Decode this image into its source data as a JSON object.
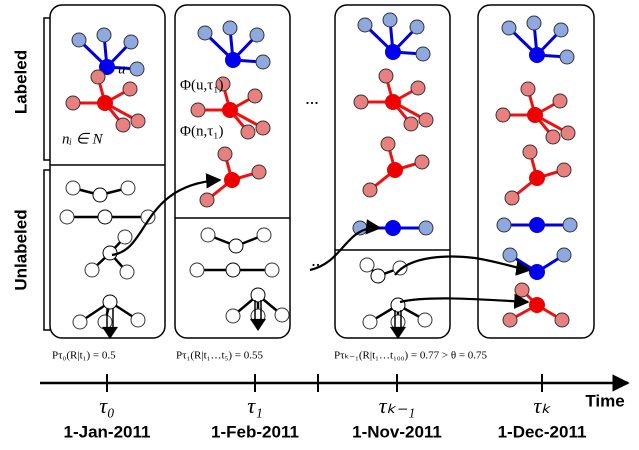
{
  "side_labels": {
    "labeled": "Labeled",
    "unlabeled": "Unlabeled"
  },
  "annotations": {
    "u": "u",
    "n_i": "nᵢ ∈ N",
    "phi_u": "Φ(u,τ₁)",
    "phi_n": "Φ(n,τ₁)",
    "ellipsis": [
      "...",
      "..."
    ]
  },
  "timeline": {
    "axis_label": "Time",
    "steps": [
      {
        "tau": "τ₀",
        "date": "1-Jan-2011",
        "probability": "Pτ₀(R|t₁) = 0.5"
      },
      {
        "tau": "τ₁",
        "date": "1-Feb-2011",
        "probability": "Pτ₁(R|t₁…t₅) = 0.55"
      },
      {
        "tau": "τₖ₋₁",
        "date": "1-Nov-2011",
        "probability": "Pτₖ₋₁(R|t₁…t₁₀₀) = 0.77 > θ = 0.75"
      },
      {
        "tau": "τₖ",
        "date": "1-Dec-2011",
        "probability": null
      }
    ]
  }
}
